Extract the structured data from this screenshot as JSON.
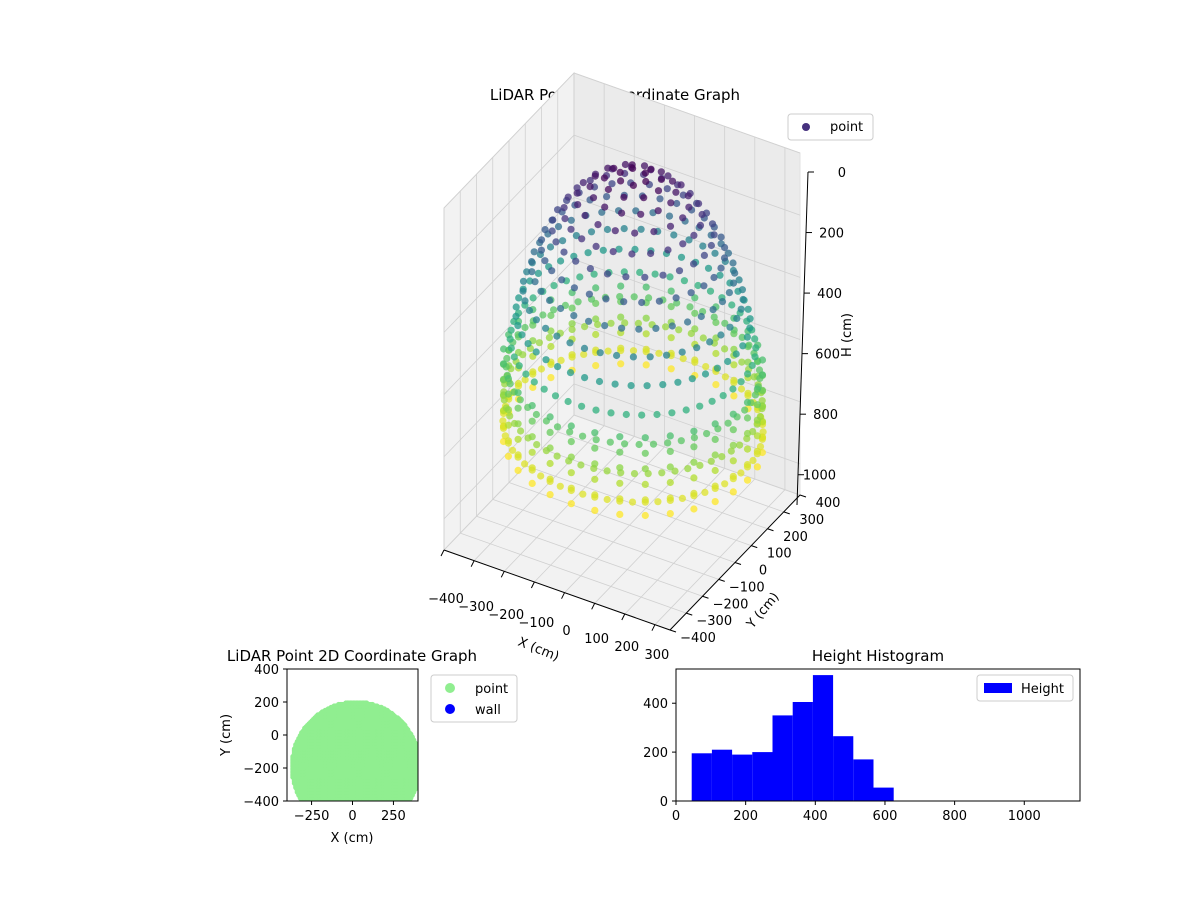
{
  "chart_data": [
    {
      "id": "scatter3d",
      "type": "scatter",
      "projection": "3d",
      "title": "LiDAR Point 3D Coordinate Graph",
      "xlabel": "X (cm)",
      "ylabel": "Y (cm)",
      "zlabel": "H (cm)",
      "xlim": [
        -400,
        350
      ],
      "ylim": [
        -400,
        400
      ],
      "zlim": [
        1100,
        0
      ],
      "zaxis_inverted": true,
      "x_ticks": [
        "−400",
        "−300",
        "−200",
        "−100",
        "0",
        "100",
        "200",
        "300"
      ],
      "y_ticks": [
        "−400",
        "−300",
        "−200",
        "−100",
        "0",
        "100",
        "200",
        "300",
        "400"
      ],
      "z_ticks": [
        "0",
        "200",
        "400",
        "600",
        "800",
        "1000"
      ],
      "legend": {
        "position": "upper-right",
        "entries": [
          {
            "name": "point",
            "color": "#46317e"
          }
        ]
      },
      "colormap": "viridis",
      "grid": true,
      "shape": "dome of points; rim radius about 380 cm at about 850 cm height, apex near 0 cm height over the center",
      "samples": {
        "n_rings": 14,
        "n_per_ring": 64,
        "rim_radius": 380,
        "rim_height": 850,
        "rim_wall_depth": 250
      }
    },
    {
      "id": "scatter2d",
      "type": "scatter",
      "title": "LiDAR Point 2D Coordinate Graph",
      "xlabel": "X (cm)",
      "ylabel": "Y (cm)",
      "xlim": [
        -400,
        400
      ],
      "ylim": [
        -400,
        400
      ],
      "x_ticks": [
        "−250",
        "0",
        "250"
      ],
      "y_ticks": [
        "−400",
        "−200",
        "0",
        "200",
        "400"
      ],
      "legend": {
        "position": "outside-right",
        "entries": [
          {
            "name": "point",
            "color": "#90ee90"
          },
          {
            "name": "wall",
            "color": "#0000ff"
          }
        ]
      },
      "grid": false,
      "series": [
        {
          "name": "point",
          "color": "#90ee90",
          "region": "filled half-disk centered near (20, -190) with radius about 390 cm"
        },
        {
          "name": "wall",
          "color": "#0000ff",
          "values": []
        }
      ]
    },
    {
      "id": "histogram",
      "type": "bar",
      "title": "Height Histogram",
      "xlabel": "",
      "ylabel": "",
      "xlim": [
        0,
        1160
      ],
      "ylim": [
        0,
        540
      ],
      "x_ticks": [
        "0",
        "200",
        "400",
        "600",
        "800",
        "1000"
      ],
      "y_ticks": [
        "0",
        "200",
        "400"
      ],
      "legend": {
        "position": "upper-right",
        "entries": [
          {
            "name": "Height",
            "color": "#0000ff"
          }
        ]
      },
      "grid": false,
      "series": [
        {
          "name": "Height",
          "color": "#0000ff",
          "bin_edges": [
            45,
            103,
            161,
            219,
            277,
            335,
            393,
            451,
            509,
            567,
            625,
            683,
            741,
            799,
            857,
            915,
            973,
            1031,
            1089,
            1147
          ],
          "counts": [
            195,
            210,
            190,
            200,
            350,
            405,
            515,
            265,
            170,
            55,
            0,
            0,
            0,
            0,
            0,
            0,
            0,
            0,
            0
          ]
        }
      ]
    }
  ]
}
